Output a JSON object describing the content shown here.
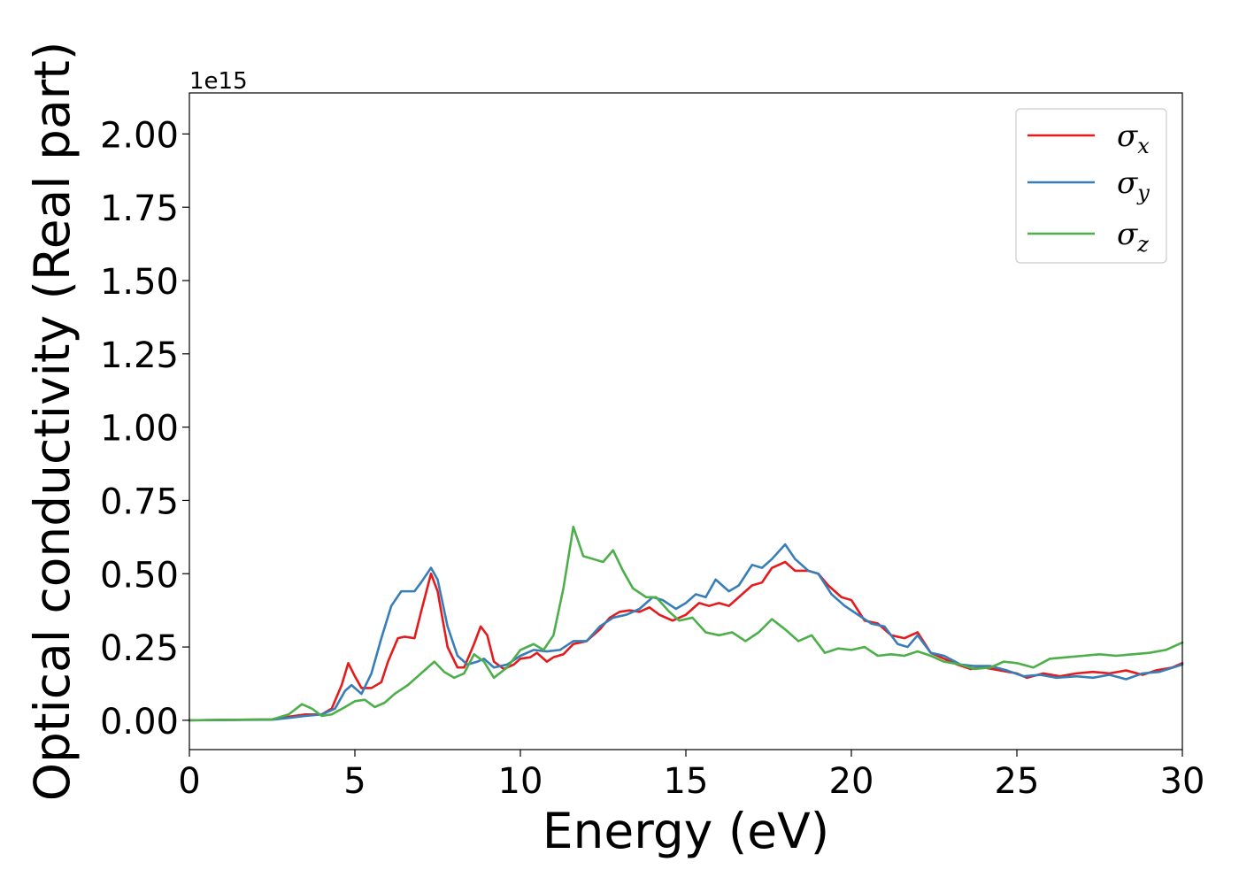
{
  "chart_data": {
    "type": "line",
    "title": "",
    "xlabel": "Energy (eV)",
    "ylabel": "Optical conductivity (Real part)",
    "y_offset_label": "1e15",
    "xlim": [
      0,
      30
    ],
    "ylim": [
      -0.1,
      2.14
    ],
    "xticks": [
      "0",
      "5",
      "10",
      "15",
      "20",
      "25",
      "30"
    ],
    "yticks": [
      "0.00",
      "0.25",
      "0.50",
      "0.75",
      "1.00",
      "1.25",
      "1.50",
      "1.75",
      "2.00"
    ],
    "grid": false,
    "legend_position": "top-right",
    "series": [
      {
        "name": "σx",
        "legend_symbol": "σ",
        "legend_sub": "x",
        "color": "#e41a1c",
        "points": [
          [
            0,
            0
          ],
          [
            2.5,
            0.003
          ],
          [
            3,
            0.012
          ],
          [
            3.5,
            0.02
          ],
          [
            4,
            0.02
          ],
          [
            4.3,
            0.04
          ],
          [
            4.6,
            0.12
          ],
          [
            4.8,
            0.195
          ],
          [
            5.0,
            0.15
          ],
          [
            5.2,
            0.11
          ],
          [
            5.5,
            0.11
          ],
          [
            5.8,
            0.13
          ],
          [
            6.0,
            0.2
          ],
          [
            6.3,
            0.28
          ],
          [
            6.5,
            0.285
          ],
          [
            6.8,
            0.28
          ],
          [
            7.0,
            0.37
          ],
          [
            7.3,
            0.5
          ],
          [
            7.5,
            0.44
          ],
          [
            7.8,
            0.25
          ],
          [
            8.1,
            0.18
          ],
          [
            8.3,
            0.18
          ],
          [
            8.6,
            0.26
          ],
          [
            8.8,
            0.32
          ],
          [
            9.0,
            0.29
          ],
          [
            9.2,
            0.2
          ],
          [
            9.5,
            0.175
          ],
          [
            9.8,
            0.19
          ],
          [
            10.0,
            0.21
          ],
          [
            10.3,
            0.215
          ],
          [
            10.5,
            0.23
          ],
          [
            10.8,
            0.2
          ],
          [
            11.0,
            0.215
          ],
          [
            11.3,
            0.225
          ],
          [
            11.6,
            0.26
          ],
          [
            12.0,
            0.27
          ],
          [
            12.4,
            0.31
          ],
          [
            12.7,
            0.35
          ],
          [
            13.0,
            0.37
          ],
          [
            13.3,
            0.375
          ],
          [
            13.6,
            0.37
          ],
          [
            13.9,
            0.385
          ],
          [
            14.2,
            0.36
          ],
          [
            14.6,
            0.34
          ],
          [
            15.0,
            0.36
          ],
          [
            15.4,
            0.4
          ],
          [
            15.7,
            0.39
          ],
          [
            16.0,
            0.4
          ],
          [
            16.3,
            0.39
          ],
          [
            16.6,
            0.42
          ],
          [
            17.0,
            0.46
          ],
          [
            17.3,
            0.47
          ],
          [
            17.6,
            0.52
          ],
          [
            18.0,
            0.54
          ],
          [
            18.3,
            0.51
          ],
          [
            18.7,
            0.51
          ],
          [
            19.0,
            0.5
          ],
          [
            19.3,
            0.46
          ],
          [
            19.7,
            0.42
          ],
          [
            20.0,
            0.41
          ],
          [
            20.4,
            0.34
          ],
          [
            20.8,
            0.33
          ],
          [
            21.2,
            0.29
          ],
          [
            21.6,
            0.28
          ],
          [
            22.0,
            0.3
          ],
          [
            22.4,
            0.23
          ],
          [
            22.8,
            0.21
          ],
          [
            23.2,
            0.19
          ],
          [
            23.6,
            0.175
          ],
          [
            24.0,
            0.18
          ],
          [
            24.5,
            0.17
          ],
          [
            25.0,
            0.16
          ],
          [
            25.3,
            0.145
          ],
          [
            25.8,
            0.16
          ],
          [
            26.3,
            0.15
          ],
          [
            26.8,
            0.16
          ],
          [
            27.3,
            0.165
          ],
          [
            27.8,
            0.16
          ],
          [
            28.3,
            0.17
          ],
          [
            28.8,
            0.155
          ],
          [
            29.2,
            0.17
          ],
          [
            29.7,
            0.18
          ],
          [
            30,
            0.195
          ]
        ]
      },
      {
        "name": "σy",
        "legend_symbol": "σ",
        "legend_sub": "y",
        "color": "#377eb8",
        "points": [
          [
            0,
            0
          ],
          [
            2.5,
            0.002
          ],
          [
            3,
            0.008
          ],
          [
            3.5,
            0.015
          ],
          [
            4,
            0.02
          ],
          [
            4.4,
            0.04
          ],
          [
            4.7,
            0.1
          ],
          [
            4.9,
            0.12
          ],
          [
            5.2,
            0.09
          ],
          [
            5.5,
            0.16
          ],
          [
            5.8,
            0.28
          ],
          [
            6.1,
            0.39
          ],
          [
            6.4,
            0.44
          ],
          [
            6.8,
            0.44
          ],
          [
            7.0,
            0.47
          ],
          [
            7.3,
            0.52
          ],
          [
            7.5,
            0.48
          ],
          [
            7.8,
            0.32
          ],
          [
            8.1,
            0.22
          ],
          [
            8.4,
            0.19
          ],
          [
            8.7,
            0.2
          ],
          [
            8.9,
            0.21
          ],
          [
            9.2,
            0.18
          ],
          [
            9.6,
            0.19
          ],
          [
            10.0,
            0.22
          ],
          [
            10.4,
            0.24
          ],
          [
            10.8,
            0.235
          ],
          [
            11.2,
            0.24
          ],
          [
            11.6,
            0.27
          ],
          [
            12.0,
            0.27
          ],
          [
            12.4,
            0.32
          ],
          [
            12.8,
            0.35
          ],
          [
            13.2,
            0.36
          ],
          [
            13.6,
            0.38
          ],
          [
            14.0,
            0.42
          ],
          [
            14.3,
            0.41
          ],
          [
            14.7,
            0.38
          ],
          [
            15.0,
            0.4
          ],
          [
            15.3,
            0.43
          ],
          [
            15.6,
            0.42
          ],
          [
            15.9,
            0.48
          ],
          [
            16.3,
            0.44
          ],
          [
            16.6,
            0.46
          ],
          [
            17.0,
            0.53
          ],
          [
            17.3,
            0.52
          ],
          [
            17.6,
            0.55
          ],
          [
            18.0,
            0.6
          ],
          [
            18.3,
            0.55
          ],
          [
            18.7,
            0.51
          ],
          [
            19.0,
            0.5
          ],
          [
            19.4,
            0.43
          ],
          [
            19.8,
            0.39
          ],
          [
            20.2,
            0.36
          ],
          [
            20.6,
            0.33
          ],
          [
            21.0,
            0.32
          ],
          [
            21.4,
            0.26
          ],
          [
            21.7,
            0.25
          ],
          [
            22.0,
            0.29
          ],
          [
            22.4,
            0.23
          ],
          [
            22.8,
            0.22
          ],
          [
            23.3,
            0.19
          ],
          [
            23.7,
            0.185
          ],
          [
            24.2,
            0.185
          ],
          [
            24.7,
            0.17
          ],
          [
            25.2,
            0.15
          ],
          [
            25.7,
            0.155
          ],
          [
            26.2,
            0.145
          ],
          [
            26.8,
            0.15
          ],
          [
            27.3,
            0.145
          ],
          [
            27.8,
            0.155
          ],
          [
            28.3,
            0.14
          ],
          [
            28.8,
            0.16
          ],
          [
            29.3,
            0.165
          ],
          [
            30,
            0.19
          ]
        ]
      },
      {
        "name": "σz",
        "legend_symbol": "σ",
        "legend_sub": "z",
        "color": "#4daf4a",
        "points": [
          [
            0,
            0
          ],
          [
            2.5,
            0.003
          ],
          [
            3.0,
            0.02
          ],
          [
            3.4,
            0.055
          ],
          [
            3.7,
            0.04
          ],
          [
            4.0,
            0.015
          ],
          [
            4.3,
            0.02
          ],
          [
            4.7,
            0.045
          ],
          [
            5.0,
            0.065
          ],
          [
            5.3,
            0.07
          ],
          [
            5.6,
            0.045
          ],
          [
            5.9,
            0.06
          ],
          [
            6.2,
            0.09
          ],
          [
            6.6,
            0.12
          ],
          [
            7.0,
            0.16
          ],
          [
            7.4,
            0.2
          ],
          [
            7.7,
            0.165
          ],
          [
            8.0,
            0.145
          ],
          [
            8.3,
            0.16
          ],
          [
            8.6,
            0.225
          ],
          [
            8.9,
            0.2
          ],
          [
            9.2,
            0.145
          ],
          [
            9.6,
            0.18
          ],
          [
            10.0,
            0.24
          ],
          [
            10.4,
            0.26
          ],
          [
            10.7,
            0.24
          ],
          [
            11.0,
            0.29
          ],
          [
            11.3,
            0.45
          ],
          [
            11.6,
            0.66
          ],
          [
            11.9,
            0.56
          ],
          [
            12.2,
            0.55
          ],
          [
            12.5,
            0.54
          ],
          [
            12.8,
            0.58
          ],
          [
            13.1,
            0.51
          ],
          [
            13.4,
            0.45
          ],
          [
            13.8,
            0.42
          ],
          [
            14.1,
            0.42
          ],
          [
            14.5,
            0.37
          ],
          [
            14.8,
            0.34
          ],
          [
            15.2,
            0.35
          ],
          [
            15.6,
            0.3
          ],
          [
            16.0,
            0.29
          ],
          [
            16.4,
            0.3
          ],
          [
            16.8,
            0.27
          ],
          [
            17.2,
            0.3
          ],
          [
            17.6,
            0.345
          ],
          [
            18.0,
            0.31
          ],
          [
            18.4,
            0.27
          ],
          [
            18.8,
            0.29
          ],
          [
            19.2,
            0.23
          ],
          [
            19.6,
            0.245
          ],
          [
            20.0,
            0.24
          ],
          [
            20.4,
            0.25
          ],
          [
            20.8,
            0.22
          ],
          [
            21.2,
            0.225
          ],
          [
            21.6,
            0.22
          ],
          [
            22.0,
            0.235
          ],
          [
            22.4,
            0.22
          ],
          [
            22.8,
            0.2
          ],
          [
            23.3,
            0.19
          ],
          [
            23.7,
            0.175
          ],
          [
            24.2,
            0.18
          ],
          [
            24.6,
            0.2
          ],
          [
            25.0,
            0.195
          ],
          [
            25.5,
            0.18
          ],
          [
            26.0,
            0.21
          ],
          [
            26.5,
            0.215
          ],
          [
            27.0,
            0.22
          ],
          [
            27.5,
            0.225
          ],
          [
            28.0,
            0.22
          ],
          [
            28.5,
            0.225
          ],
          [
            29.0,
            0.23
          ],
          [
            29.5,
            0.24
          ],
          [
            30,
            0.265
          ]
        ]
      }
    ]
  }
}
